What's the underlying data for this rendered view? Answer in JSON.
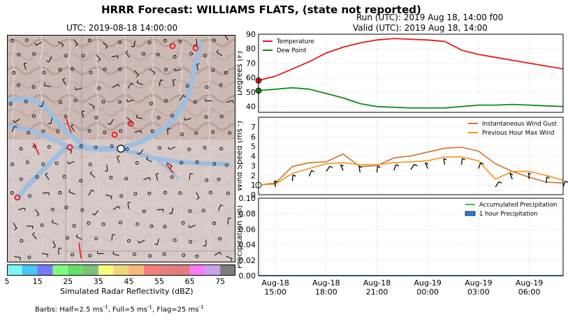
{
  "header": {
    "title": "HRRR Forecast: WILLIAMS FLATS, (state not reported)",
    "run_line": "Run (UTC): 2019 Aug 18, 14:00 f00",
    "valid_line": "Valid (UTC): 2019 Aug 18, 14:00"
  },
  "map": {
    "time_label": "UTC: 2019-08-18 14:00:00"
  },
  "colorbar": {
    "ticks": [
      "5",
      "15",
      "25",
      "35",
      "45",
      "55",
      "65",
      "75"
    ],
    "label": "Simulated Radar Reflectivity (dBZ)",
    "colors": [
      "#7ef6f6",
      "#49c5f6",
      "#7a7af6",
      "#7dfd7d",
      "#6adc6a",
      "#7bc07b",
      "#fafa7d",
      "#f0d67a",
      "#f6b97a",
      "#f77d7d",
      "#e97d7d",
      "#e07d7d",
      "#f97bf6",
      "#c8a3e6",
      "#7d7d7d"
    ]
  },
  "barbs_note": {
    "prefix": "Barbs: Half=2.5 ms",
    "mid": ", Full=5 ms",
    "suffix": ", Flag=25 ms",
    "exp": "-1"
  },
  "chart_data": [
    {
      "type": "line",
      "ylabel": "Degrees (F)",
      "ylim": [
        36,
        90
      ],
      "yticks": [
        "40",
        "50",
        "60",
        "70",
        "80",
        "90"
      ],
      "legend_position": "top-left",
      "series": [
        {
          "name": "Temperature",
          "color": "#e31a1c",
          "x": [
            0,
            1,
            2,
            3,
            4,
            5,
            6,
            7,
            8,
            9,
            10,
            11,
            12,
            13,
            14,
            15,
            16,
            17,
            18
          ],
          "values": [
            58,
            61,
            66,
            71,
            77,
            81,
            84,
            86,
            87,
            86.5,
            86,
            85,
            79,
            76,
            74,
            72,
            70,
            68,
            66
          ]
        },
        {
          "name": "Dew Point",
          "color": "#138a13",
          "x": [
            0,
            1,
            2,
            3,
            4,
            5,
            6,
            7,
            8,
            9,
            10,
            11,
            12,
            13,
            14,
            15,
            16,
            17,
            18
          ],
          "values": [
            51,
            52,
            53,
            52,
            49,
            46,
            42,
            40,
            39.5,
            39,
            39,
            39,
            40,
            41,
            41,
            41.5,
            41,
            40.5,
            40
          ]
        }
      ]
    },
    {
      "type": "line",
      "ylabel": "Wind Speed (ms",
      "ylabel_exp": "-1",
      "ylabel_close": ")",
      "ylim": [
        0,
        8
      ],
      "yticks": [
        "0",
        "1",
        "2",
        "3",
        "4",
        "5",
        "6",
        "7"
      ],
      "legend_position": "top-right",
      "series": [
        {
          "name": "Instantaneous Wind Gust",
          "color": "#c9742e",
          "x": [
            0,
            1,
            2,
            3,
            4,
            5,
            6,
            7,
            8,
            9,
            10,
            11,
            12,
            13,
            14,
            15,
            16,
            17,
            18
          ],
          "values": [
            1.0,
            1.2,
            2.9,
            3.3,
            3.4,
            4.2,
            2.9,
            3.0,
            3.8,
            4.0,
            4.4,
            4.8,
            4.9,
            4.5,
            3.2,
            2.4,
            1.8,
            1.3,
            1.2
          ]
        },
        {
          "name": "Previous Hour Max Wind",
          "color": "#f4921b",
          "x": [
            0,
            1,
            2,
            3,
            4,
            5,
            6,
            7,
            8,
            9,
            10,
            11,
            12,
            13,
            14,
            15,
            16,
            17,
            18
          ],
          "values": [
            1.0,
            1.1,
            2.2,
            2.7,
            3.2,
            3.3,
            3.1,
            3.1,
            3.3,
            3.4,
            3.5,
            3.9,
            3.9,
            3.5,
            1.6,
            2.4,
            2.4,
            2.0,
            1.5
          ]
        }
      ]
    },
    {
      "type": "line",
      "ylabel": "Precipitation (in)",
      "ylim": [
        0,
        0.1
      ],
      "yticks": [
        "0.00",
        "0.02",
        "0.04",
        "0.06",
        "0.08",
        "0.10"
      ],
      "legend_position": "top-right",
      "series": [
        {
          "name": "Accumulated Precipitation",
          "color": "#3bc43b",
          "x": [
            0,
            1,
            2,
            3,
            4,
            5,
            6,
            7,
            8,
            9,
            10,
            11,
            12,
            13,
            14,
            15,
            16,
            17,
            18
          ],
          "values": [
            0,
            0,
            0,
            0,
            0,
            0,
            0,
            0,
            0,
            0,
            0,
            0,
            0,
            0,
            0,
            0,
            0,
            0,
            0
          ]
        },
        {
          "name": "1 hour Precipitation",
          "color": "#1f7fdd",
          "x": [
            0,
            1,
            2,
            3,
            4,
            5,
            6,
            7,
            8,
            9,
            10,
            11,
            12,
            13,
            14,
            15,
            16,
            17,
            18
          ],
          "values": [
            0,
            0,
            0,
            0,
            0,
            0,
            0,
            0,
            0,
            0,
            0,
            0,
            0,
            0,
            0,
            0,
            0,
            0,
            0
          ]
        }
      ]
    }
  ],
  "xaxis": {
    "ticks": [
      {
        "x": 1,
        "line1": "Aug-18",
        "line2": "15:00"
      },
      {
        "x": 4,
        "line1": "Aug-18",
        "line2": "18:00"
      },
      {
        "x": 7,
        "line1": "Aug-18",
        "line2": "21:00"
      },
      {
        "x": 10,
        "line1": "Aug-19",
        "line2": "00:00"
      },
      {
        "x": 13,
        "line1": "Aug-19",
        "line2": "03:00"
      },
      {
        "x": 16,
        "line1": "Aug-19",
        "line2": "06:00"
      }
    ],
    "xlim": [
      0,
      18
    ]
  }
}
